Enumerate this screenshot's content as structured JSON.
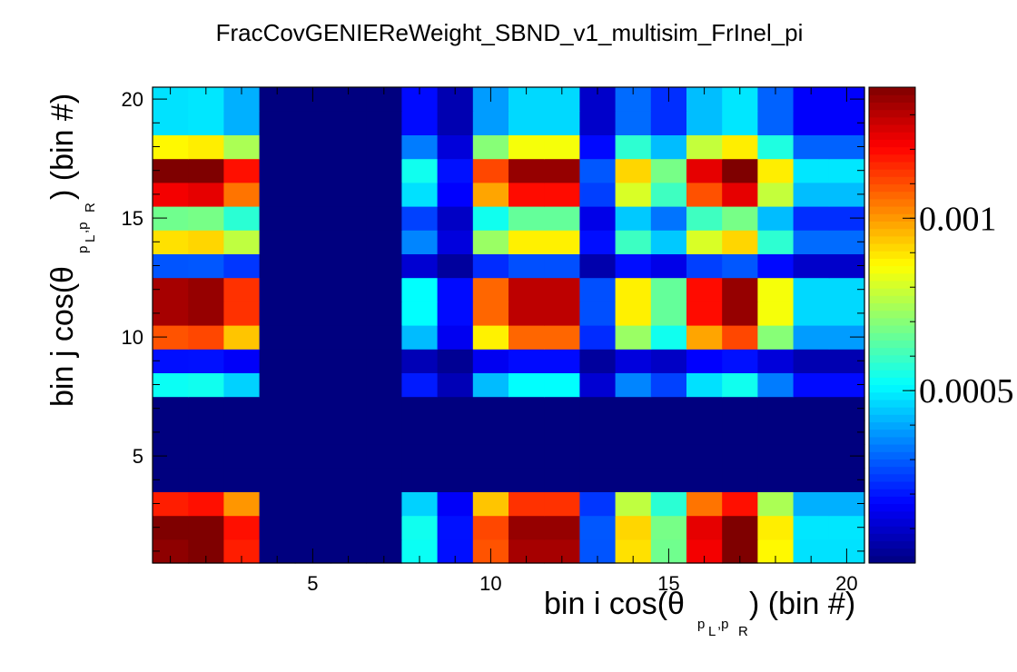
{
  "chart_data": {
    "type": "heatmap",
    "title": "FracCovGENIEReWeight_SBND_v1_multisim_FrInel_pi",
    "xlabel": "bin i cos(θ  ) (bin #)",
    "xlabel_parts": {
      "pre": "bin i cos(θ",
      "post": ") (bin #)",
      "sub": "p⃗L,p⃗R",
      "sub_l1": "p",
      "sub_l2": "L",
      "sub_l3": ",p",
      "sub_l4": "R"
    },
    "ylabel": "bin j cos(θ  ) (bin #)",
    "ylabel_parts": {
      "pre": "bin j cos(θ",
      "post": ") (bin #)",
      "sub_l1": "p",
      "sub_l2": "L",
      "sub_l3": ",p",
      "sub_l4": "R"
    },
    "x_ticks": [
      "5",
      "10",
      "15",
      "20"
    ],
    "y_ticks": [
      "5",
      "10",
      "15",
      "20"
    ],
    "xlim": [
      0.5,
      20.5
    ],
    "ylim": [
      0.5,
      20.5
    ],
    "n_bins": 20,
    "colorbar": {
      "ticks": [
        "0.0005",
        "0.001"
      ],
      "tick_values": [
        0.0005,
        0.001
      ],
      "zlim": [
        0,
        0.00138
      ]
    },
    "colormap": [
      "#00007f",
      "#0000ff",
      "#007fff",
      "#00ffff",
      "#7fff7f",
      "#ffff00",
      "#ff7f00",
      "#ff0000",
      "#7f0000"
    ],
    "bin_weights": [
      1.28,
      1.3,
      1.1,
      0,
      0,
      0,
      0,
      0.5,
      0.18,
      1.03,
      1.25,
      1.25,
      0.27,
      0.85,
      0.63,
      1.15,
      1.3,
      0.82,
      0.45,
      0.45
    ],
    "row_weights": [
      1.28,
      1.3,
      1.1,
      0,
      0,
      0,
      0,
      0.5,
      0.18,
      1.03,
      1.25,
      1.25,
      0.27,
      0.85,
      0.63,
      1.15,
      1.3,
      0.82,
      0.45,
      0.45
    ],
    "scale_z": 0.00083,
    "values_note": "z[j][i] = scale_z * row_weights[j] * bin_weights[i]"
  }
}
